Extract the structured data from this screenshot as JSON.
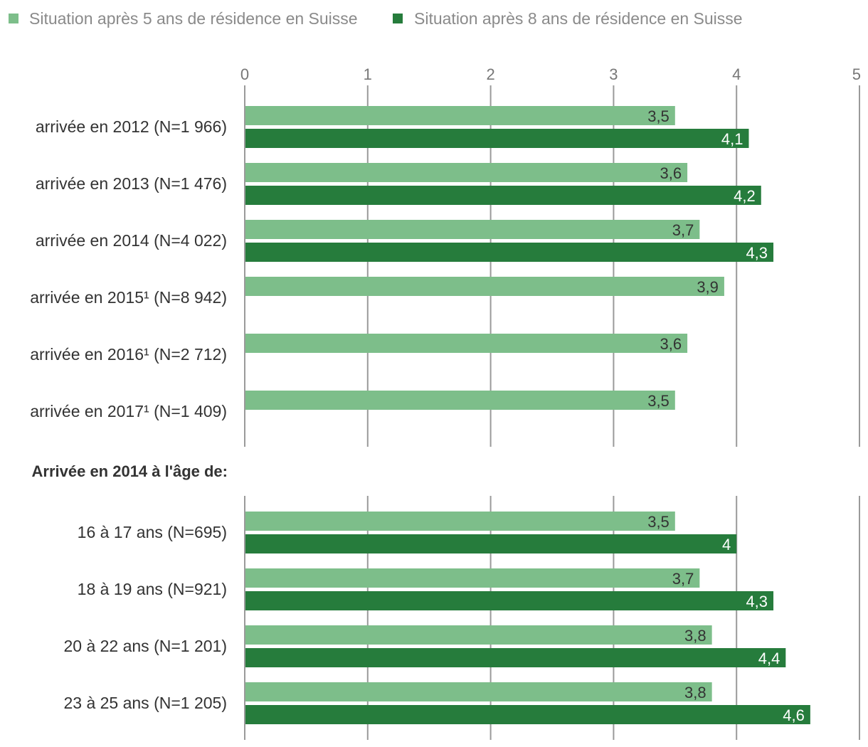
{
  "chart_data": {
    "type": "bar",
    "orientation": "horizontal",
    "series": [
      {
        "name": "Situation après 5 ans de résidence en Suisse",
        "color": "#7dbe8a"
      },
      {
        "name": "Situation après 8 ans de résidence en Suisse",
        "color": "#267c3c"
      }
    ],
    "x_ticks": [
      "0",
      "1",
      "2",
      "3",
      "4",
      "5"
    ],
    "xlim": [
      0,
      5
    ],
    "grid": true,
    "legend_position": "top-left",
    "groups": [
      {
        "title": "",
        "categories": [
          {
            "label": "arrivée en 2012 (N=1 966)",
            "v5": 3.5,
            "v5_label": "3,5",
            "v8": 4.1,
            "v8_label": "4,1"
          },
          {
            "label": "arrivée en 2013 (N=1 476)",
            "v5": 3.6,
            "v5_label": "3,6",
            "v8": 4.2,
            "v8_label": "4,2"
          },
          {
            "label": "arrivée en 2014 (N=4 022)",
            "v5": 3.7,
            "v5_label": "3,7",
            "v8": 4.3,
            "v8_label": "4,3"
          },
          {
            "label": "arrivée en 2015¹ (N=8 942)",
            "v5": 3.9,
            "v5_label": "3,9",
            "v8": null,
            "v8_label": ""
          },
          {
            "label": "arrivée en 2016¹ (N=2 712)",
            "v5": 3.6,
            "v5_label": "3,6",
            "v8": null,
            "v8_label": ""
          },
          {
            "label": "arrivée en 2017¹ (N=1 409)",
            "v5": 3.5,
            "v5_label": "3,5",
            "v8": null,
            "v8_label": ""
          }
        ]
      },
      {
        "title": "Arrivée en 2014 à l'âge de:",
        "categories": [
          {
            "label": "16 à 17 ans (N=695)",
            "v5": 3.5,
            "v5_label": "3,5",
            "v8": 4.0,
            "v8_label": "4"
          },
          {
            "label": "18 à 19 ans (N=921)",
            "v5": 3.7,
            "v5_label": "3,7",
            "v8": 4.3,
            "v8_label": "4,3"
          },
          {
            "label": "20 à 22 ans (N=1 201)",
            "v5": 3.8,
            "v5_label": "3,8",
            "v8": 4.4,
            "v8_label": "4,4"
          },
          {
            "label": "23 à 25 ans (N=1 205)",
            "v5": 3.8,
            "v5_label": "3,8",
            "v8": 4.6,
            "v8_label": "4,6"
          }
        ]
      }
    ]
  }
}
